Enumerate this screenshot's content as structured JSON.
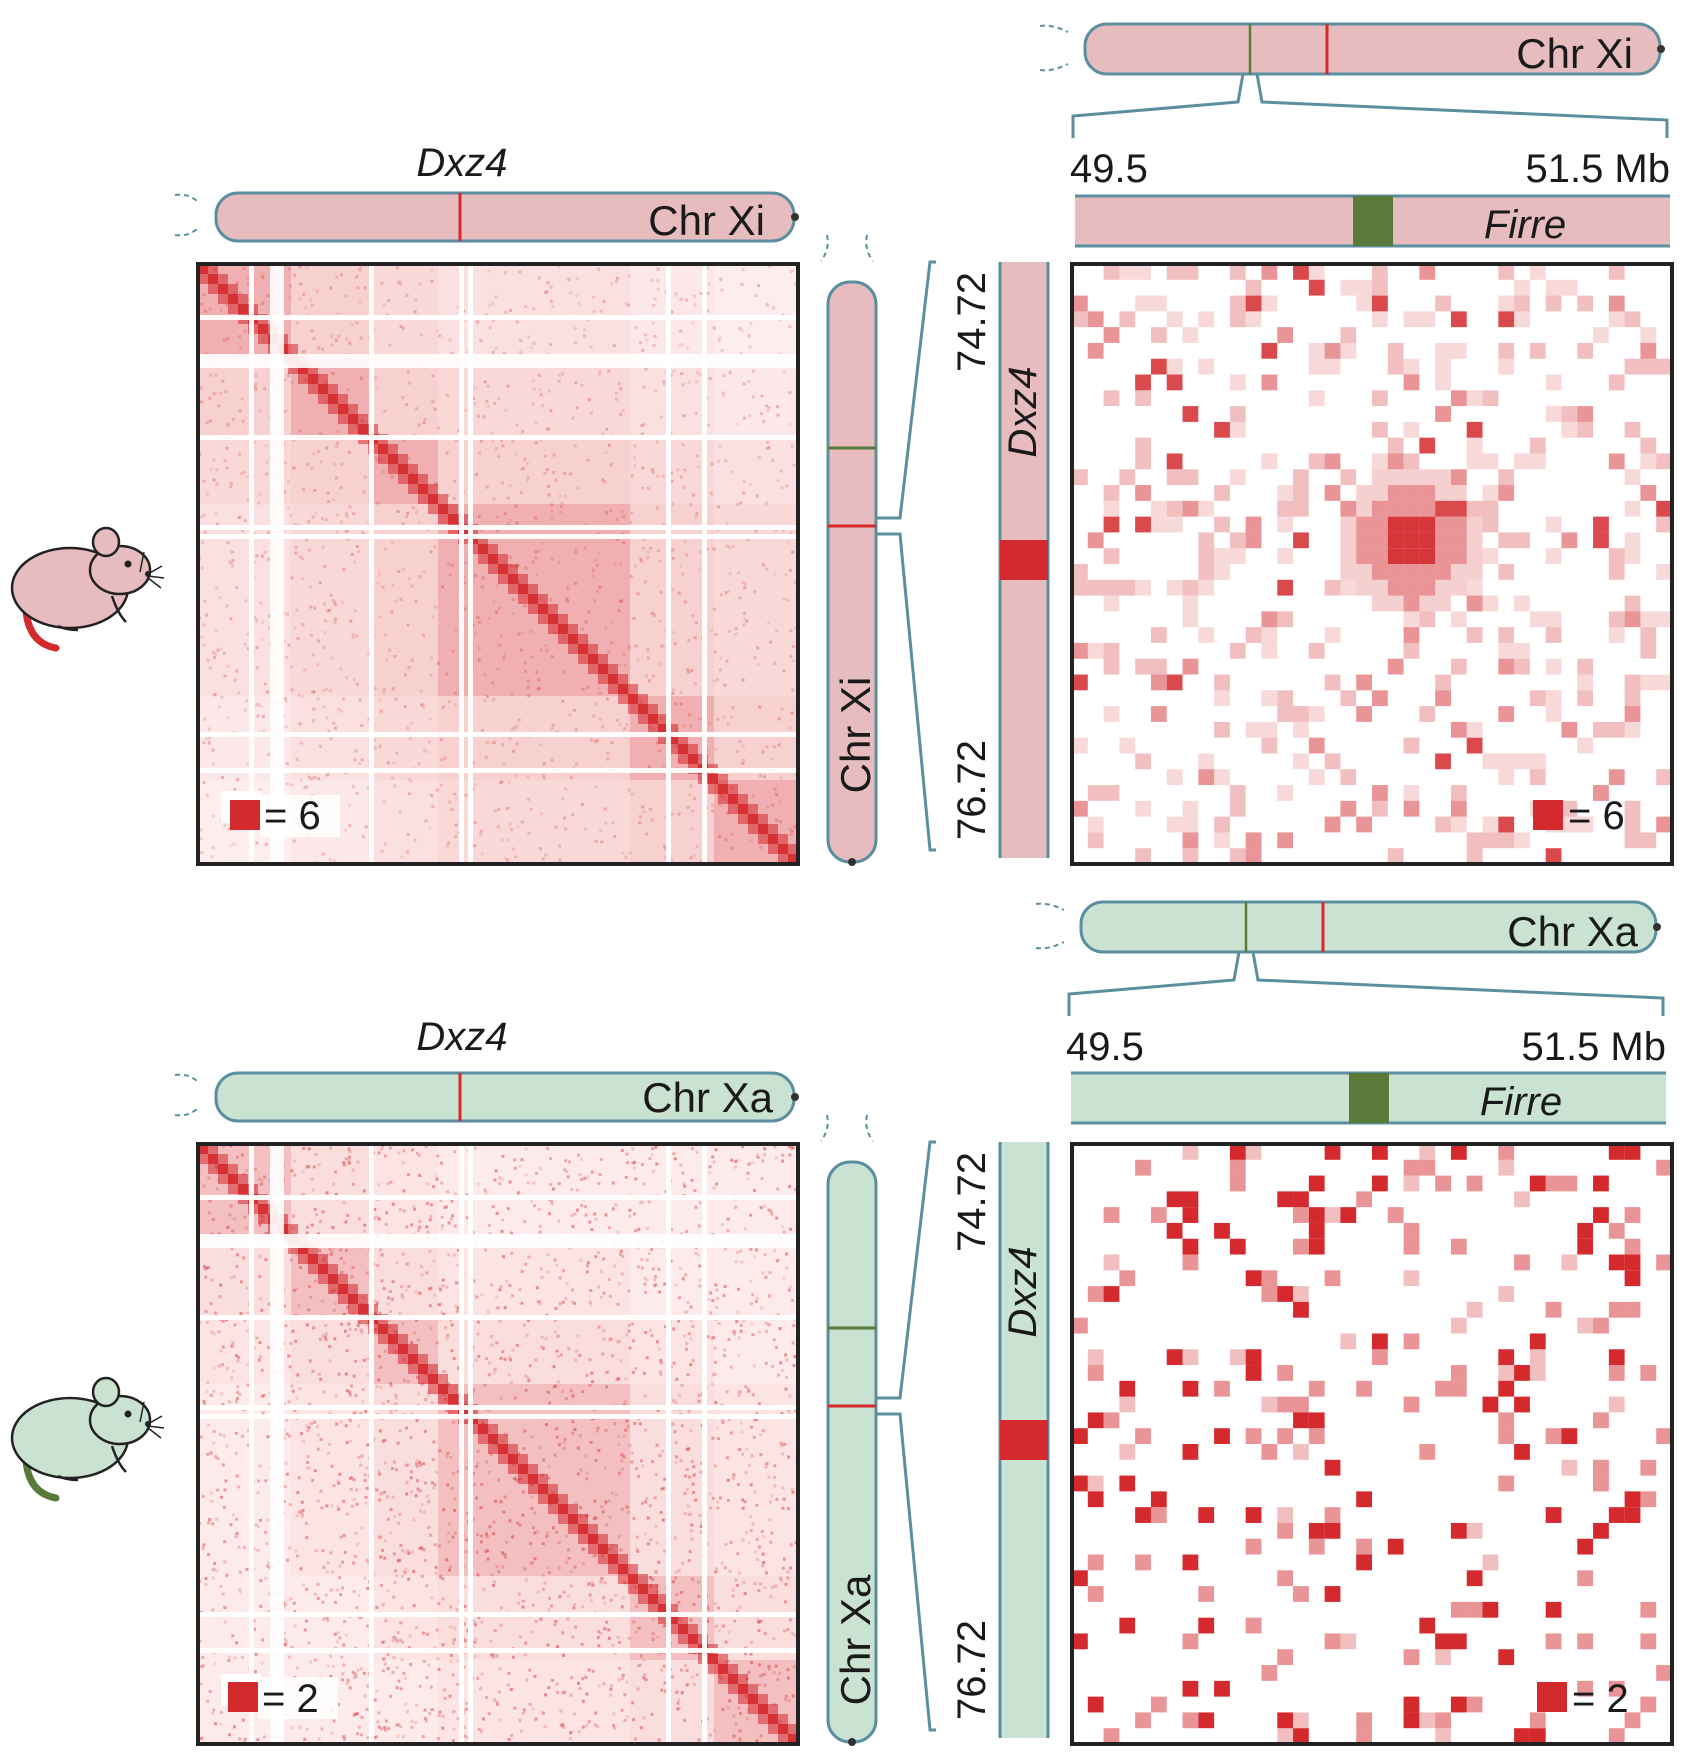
{
  "panels": [
    {
      "id": "xi",
      "mouse": "pink-mouse-icon",
      "fill_color": "#e6bcbf",
      "dxz4_label": "Dxz4",
      "chr_label": "Chr Xi",
      "scale_label": "= 6",
      "zoom_scale_label": "= 6",
      "dxz4_coord_top": "74.72",
      "dxz4_coord_bottom": "76.72",
      "zoom_start": "49.5",
      "zoom_end": "51.5 Mb",
      "firre_label": "Firre"
    },
    {
      "id": "xa",
      "mouse": "green-mouse-icon",
      "fill_color": "#c9e2d2",
      "dxz4_label": "Dxz4",
      "chr_label": "Chr Xa",
      "scale_label": "= 2",
      "zoom_scale_label": "= 2",
      "dxz4_coord_top": "74.72",
      "dxz4_coord_bottom": "76.72",
      "zoom_start": "49.5",
      "zoom_end": "51.5 Mb",
      "firre_label": "Firre"
    }
  ],
  "colors": {
    "contact": "#d42a2e",
    "outline": "#5b8fa0",
    "firre_locus": "#5a7a3a",
    "dxz4_locus": "#d42a2e"
  }
}
